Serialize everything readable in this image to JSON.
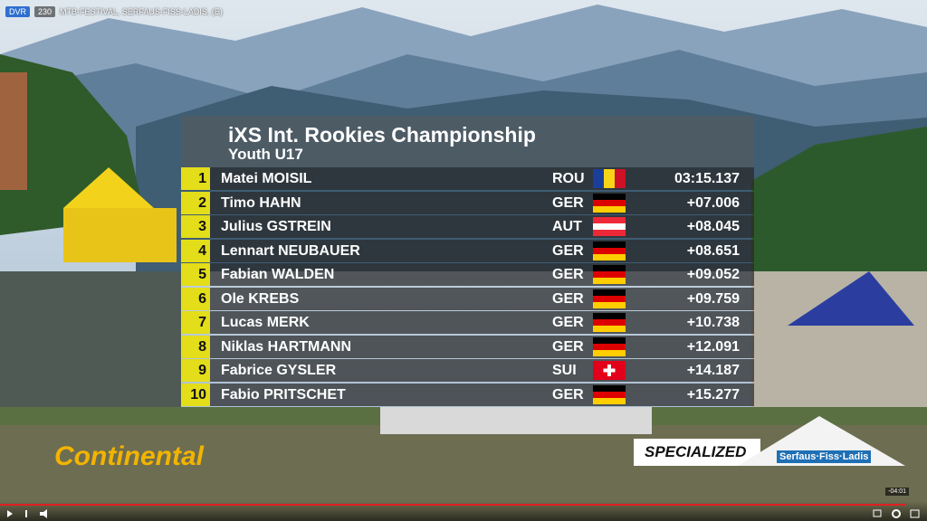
{
  "player": {
    "badge": "DVR",
    "viewers": "230",
    "title": "MTB-FESTIVAL, SERFAUS-FISS-LADIS, (E)",
    "time": "-04:01"
  },
  "overlay": {
    "title": "iXS Int. Rookies Championship",
    "subtitle": "Youth U17",
    "rows": [
      [
        "1",
        "Matei MOISIL",
        "ROU",
        "03:15.137"
      ],
      [
        "2",
        "Timo HAHN",
        "GER",
        "+07.006"
      ],
      [
        "3",
        "Julius GSTREIN",
        "AUT",
        "+08.045"
      ],
      [
        "4",
        "Lennart NEUBAUER",
        "GER",
        "+08.651"
      ],
      [
        "5",
        "Fabian WALDEN",
        "GER",
        "+09.052"
      ],
      [
        "6",
        "Ole KREBS",
        "GER",
        "+09.759"
      ],
      [
        "7",
        "Lucas MERK",
        "GER",
        "+10.738"
      ],
      [
        "8",
        "Niklas HARTMANN",
        "GER",
        "+12.091"
      ],
      [
        "9",
        "Fabrice GYSLER",
        "SUI",
        "+14.187"
      ],
      [
        "10",
        "Fabio PRITSCHET",
        "GER",
        "+15.277"
      ]
    ]
  },
  "scene": {
    "sponsors": [
      "Continental",
      "SPECIALIZED",
      "Serfaus·Fiss·Ladis"
    ]
  }
}
